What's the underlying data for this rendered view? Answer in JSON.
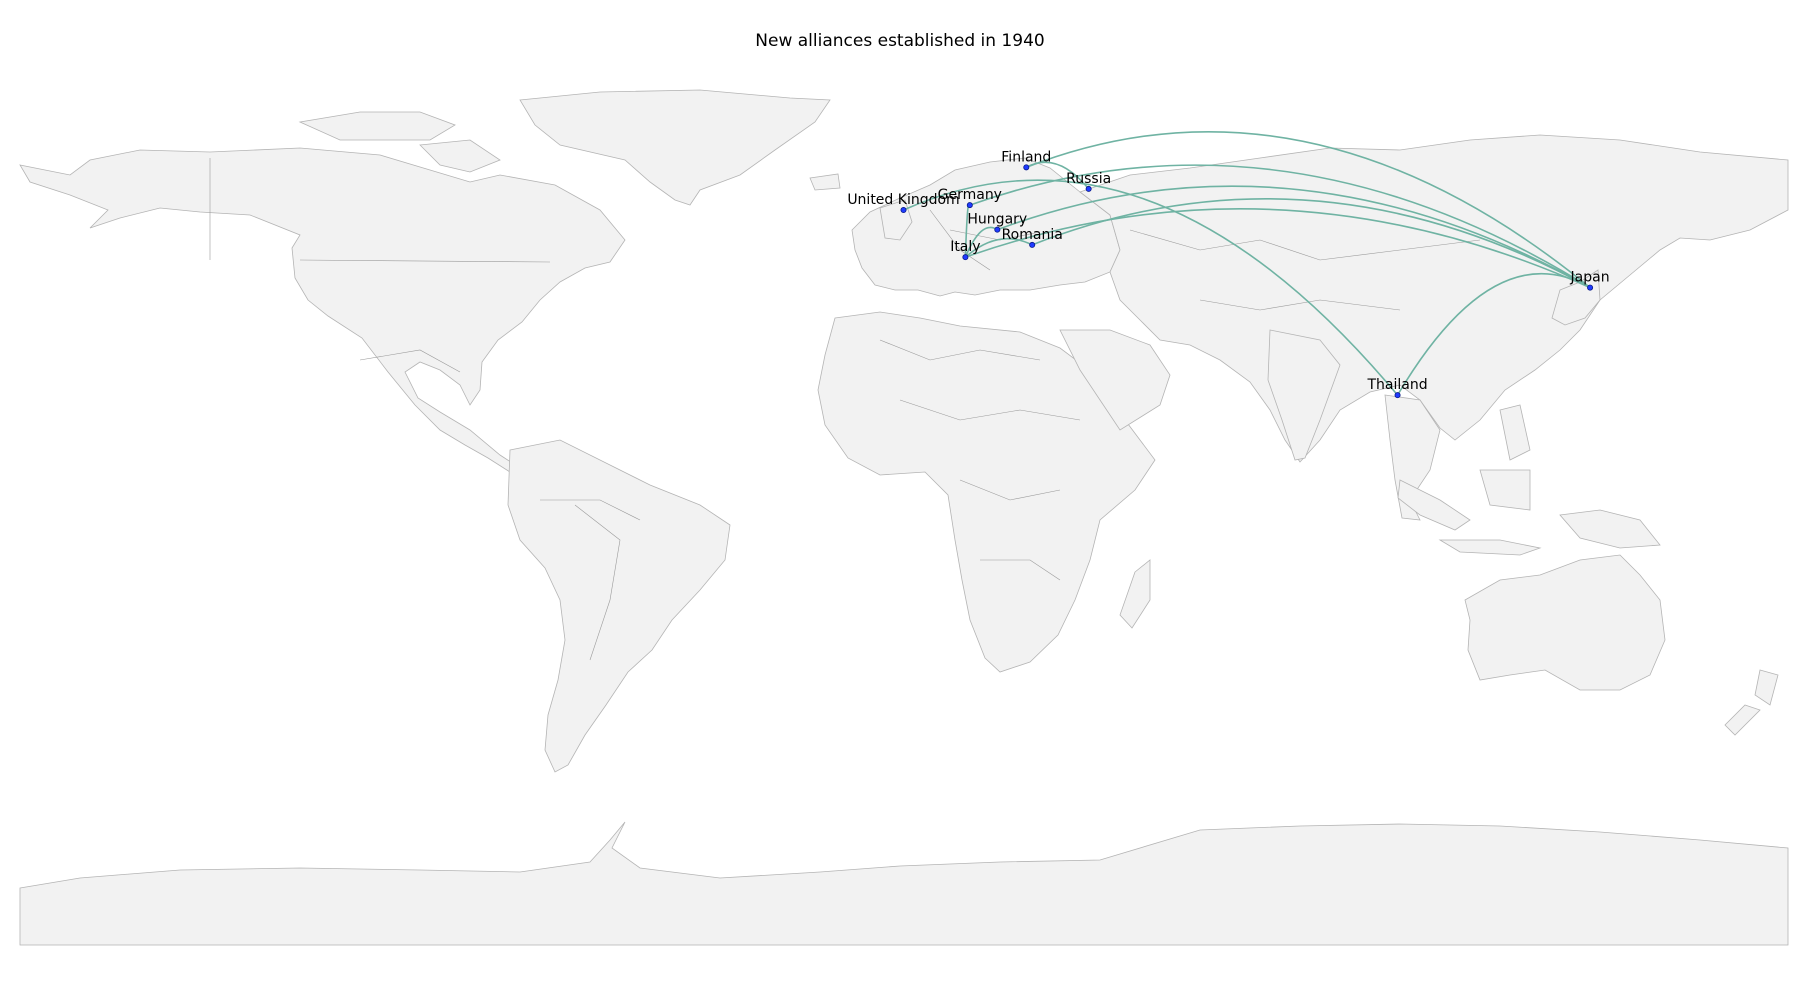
{
  "title": "New alliances established in 1940",
  "locations": [
    {
      "name": "United Kingdom",
      "lon": -0.1,
      "lat": 51.5
    },
    {
      "name": "Germany",
      "lon": 13.4,
      "lat": 52.5
    },
    {
      "name": "Finland",
      "lon": 24.9,
      "lat": 60.2
    },
    {
      "name": "Hungary",
      "lon": 19.0,
      "lat": 47.5
    },
    {
      "name": "Romania",
      "lon": 26.1,
      "lat": 44.4
    },
    {
      "name": "Italy",
      "lon": 12.5,
      "lat": 41.9
    },
    {
      "name": "Russia",
      "lon": 37.6,
      "lat": 55.8
    },
    {
      "name": "Japan",
      "lon": 139.7,
      "lat": 35.7
    },
    {
      "name": "Thailand",
      "lon": 100.5,
      "lat": 13.8
    }
  ],
  "alliances": [
    {
      "from": "Germany",
      "to": "Italy"
    },
    {
      "from": "Germany",
      "to": "Japan"
    },
    {
      "from": "Italy",
      "to": "Japan"
    },
    {
      "from": "Hungary",
      "to": "Japan"
    },
    {
      "from": "Romania",
      "to": "Japan"
    },
    {
      "from": "Hungary",
      "to": "Italy"
    },
    {
      "from": "Romania",
      "to": "Italy"
    },
    {
      "from": "Finland",
      "to": "Russia"
    },
    {
      "from": "Finland",
      "to": "Japan"
    },
    {
      "from": "Japan",
      "to": "Thailand"
    },
    {
      "from": "United Kingdom",
      "to": "Thailand"
    }
  ],
  "colors": {
    "land": "#f2f2f2",
    "coastline": "#b4b4b4",
    "arc": "#6fb3a3",
    "marker": "#1f3bff",
    "background": "#ffffff"
  }
}
